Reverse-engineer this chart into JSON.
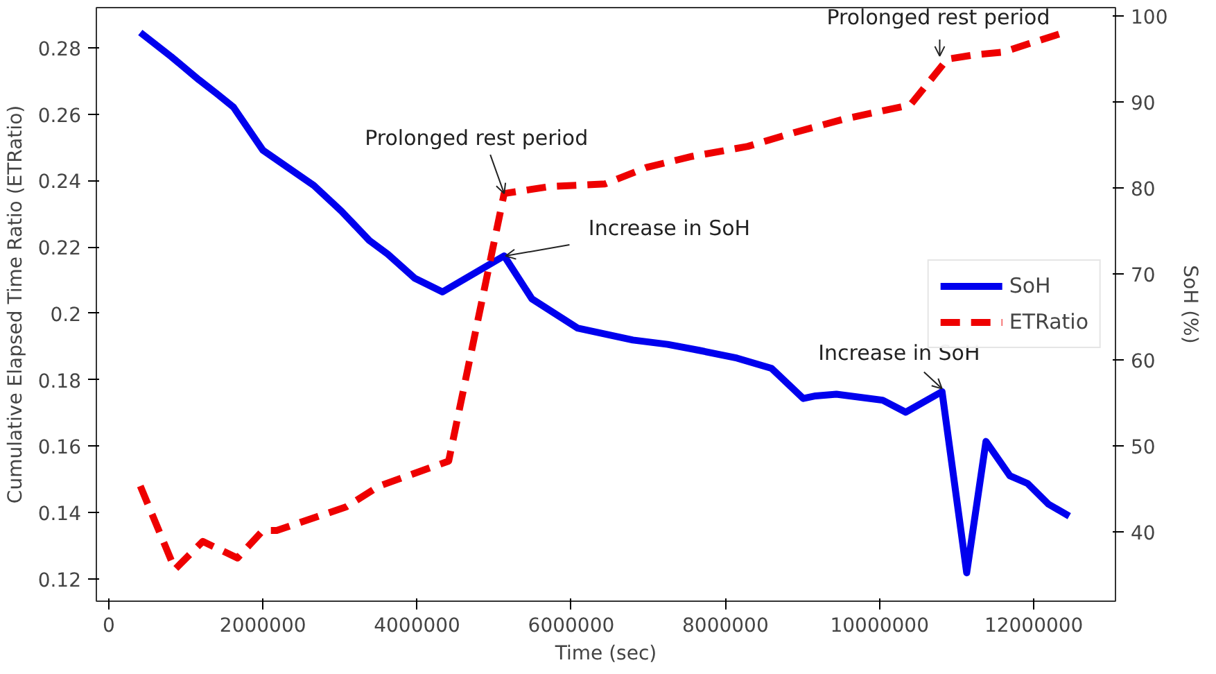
{
  "chart_data": {
    "type": "line",
    "xlabel": "Time (sec)",
    "ylabel": "Cumulative Elapsed Time Ratio (ETRatio)",
    "y2label": "SoH (%)",
    "xlim": [
      -160000,
      13060000
    ],
    "xticks": [
      0,
      2000000,
      4000000,
      6000000,
      8000000,
      10000000,
      12000000
    ],
    "ylim": [
      0.1133,
      0.2921
    ],
    "yticks": [
      0.12,
      0.14,
      0.16,
      0.18,
      0.2,
      0.22,
      0.24,
      0.26,
      0.28
    ],
    "y2lim": [
      31.9,
      101
    ],
    "y2ticks": [
      40,
      50,
      60,
      70,
      80,
      90,
      100
    ],
    "grid": false,
    "legend": "right",
    "series": [
      {
        "name": "SoH",
        "color": "#0000ee",
        "axis": "y2",
        "line_style": "solid",
        "x": [
          410000,
          810000,
          1170000,
          1400000,
          1620000,
          2000000,
          2660000,
          3020000,
          3380000,
          3620000,
          3970000,
          4330000,
          5130000,
          5490000,
          6080000,
          6800000,
          7250000,
          7660000,
          8150000,
          8600000,
          9010000,
          9170000,
          9440000,
          10040000,
          10340000,
          10810000,
          11130000,
          11380000,
          11690000,
          11920000,
          12190000,
          12460000
        ],
        "values": [
          98.1,
          95.3,
          92.6,
          91.0,
          89.4,
          84.4,
          80.3,
          77.3,
          73.9,
          72.3,
          69.5,
          67.9,
          72.1,
          67.1,
          63.7,
          62.3,
          61.8,
          61.1,
          60.2,
          59.0,
          55.5,
          55.8,
          56.0,
          55.3,
          53.9,
          56.3,
          35.2,
          50.5,
          46.5,
          45.6,
          43.2,
          41.8
        ]
      },
      {
        "name": "ETRatio",
        "color": "#ee0000",
        "axis": "y",
        "line_style": "dashed",
        "x": [
          410000,
          860000,
          1220000,
          1670000,
          2000000,
          2180000,
          3080000,
          3510000,
          4410000,
          5130000,
          5720000,
          6080000,
          6440000,
          6980000,
          7570000,
          8290000,
          8900000,
          9550000,
          10400000,
          10880000,
          11240000,
          11600000,
          12430000
        ],
        "values": [
          0.148,
          0.1229,
          0.1313,
          0.1263,
          0.1346,
          0.1346,
          0.1417,
          0.148,
          0.1555,
          0.2361,
          0.2382,
          0.2386,
          0.239,
          0.244,
          0.2473,
          0.2503,
          0.2545,
          0.2586,
          0.2628,
          0.2766,
          0.2779,
          0.2787,
          0.2849
        ]
      }
    ],
    "annotations": [
      {
        "text": "Prolonged rest period",
        "x": 5130000,
        "y": 0.2361
      },
      {
        "text": "Increase in SoH",
        "x": 5150000,
        "y": 0.2173
      },
      {
        "text": "Prolonged rest period",
        "x": 10780000,
        "y": 0.2775
      },
      {
        "text": "Increase in SoH",
        "x": 10810000,
        "y": 0.1773
      }
    ]
  }
}
